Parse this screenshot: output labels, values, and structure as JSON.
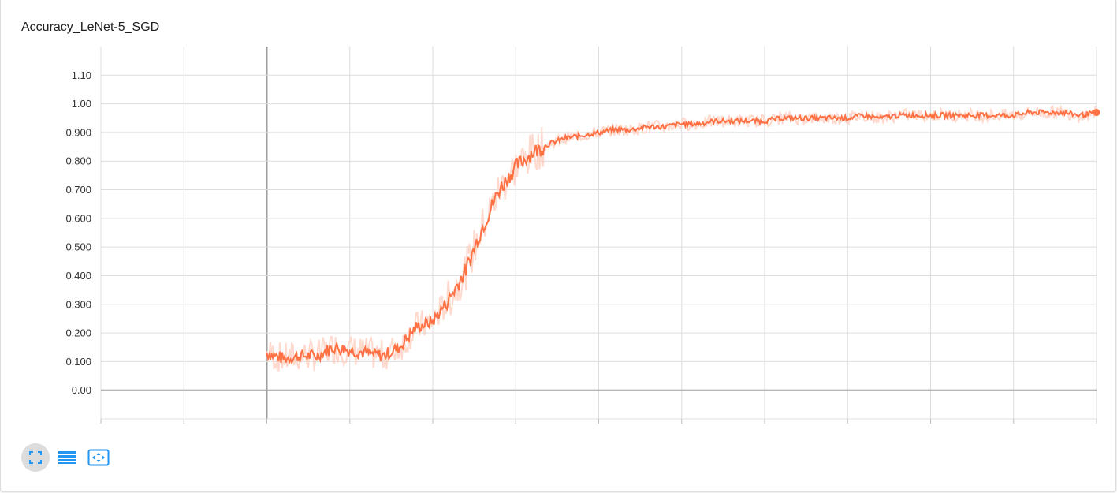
{
  "card": {
    "title": "Accuracy_LeNet-5_SGD"
  },
  "toolbar": {
    "buttons": [
      {
        "name": "toggle-expand-button",
        "icon": "fullscreen-icon",
        "active": true
      },
      {
        "name": "toggle-log-scale-button",
        "icon": "list-lines-icon",
        "active": false
      },
      {
        "name": "fit-domain-button",
        "icon": "fit-to-data-icon",
        "active": false
      }
    ],
    "accent_color": "#2196f3"
  },
  "chart_data": {
    "type": "line",
    "title": "Accuracy_LeNet-5_SGD",
    "xlabel": "",
    "ylabel": "",
    "ylim": [
      -0.1,
      1.2
    ],
    "xlim": [
      -0.2,
      1.0
    ],
    "yticks": [
      0.0,
      0.1,
      0.2,
      0.3,
      0.4,
      0.5,
      0.6,
      0.7,
      0.8,
      0.9,
      1.0,
      1.1
    ],
    "ytick_labels": [
      "0.00",
      "0.100",
      "0.200",
      "0.300",
      "0.400",
      "0.500",
      "0.600",
      "0.700",
      "0.800",
      "0.900",
      "1.00",
      "1.10"
    ],
    "xticks": [
      -0.2,
      -0.1,
      0.0,
      0.1,
      0.2,
      0.3,
      0.4,
      0.5,
      0.6,
      0.7,
      0.8,
      0.9,
      1.0
    ],
    "grid": true,
    "colors": {
      "smoothed": "#ff7043",
      "raw": "#ffccbc"
    },
    "series": [
      {
        "x": [
          0.0,
          0.02,
          0.04,
          0.06,
          0.08,
          0.1,
          0.12,
          0.14,
          0.16,
          0.18,
          0.2,
          0.22,
          0.24,
          0.26,
          0.28,
          0.3,
          0.32,
          0.34,
          0.36,
          0.38,
          0.4,
          0.42,
          0.44,
          0.46,
          0.48,
          0.5,
          0.52,
          0.54,
          0.56,
          0.58,
          0.6,
          0.62,
          0.64,
          0.66,
          0.68,
          0.7,
          0.72,
          0.74,
          0.76,
          0.78,
          0.8,
          0.82,
          0.84,
          0.86,
          0.88,
          0.9,
          0.92,
          0.94,
          0.96,
          0.98,
          1.0
        ],
        "values": [
          0.13,
          0.11,
          0.12,
          0.12,
          0.15,
          0.14,
          0.13,
          0.12,
          0.15,
          0.22,
          0.24,
          0.32,
          0.42,
          0.57,
          0.7,
          0.78,
          0.83,
          0.86,
          0.88,
          0.89,
          0.9,
          0.91,
          0.91,
          0.92,
          0.92,
          0.93,
          0.93,
          0.94,
          0.94,
          0.94,
          0.94,
          0.95,
          0.95,
          0.95,
          0.95,
          0.95,
          0.96,
          0.95,
          0.96,
          0.96,
          0.96,
          0.96,
          0.96,
          0.96,
          0.96,
          0.96,
          0.97,
          0.97,
          0.97,
          0.96,
          0.97
        ]
      }
    ]
  }
}
